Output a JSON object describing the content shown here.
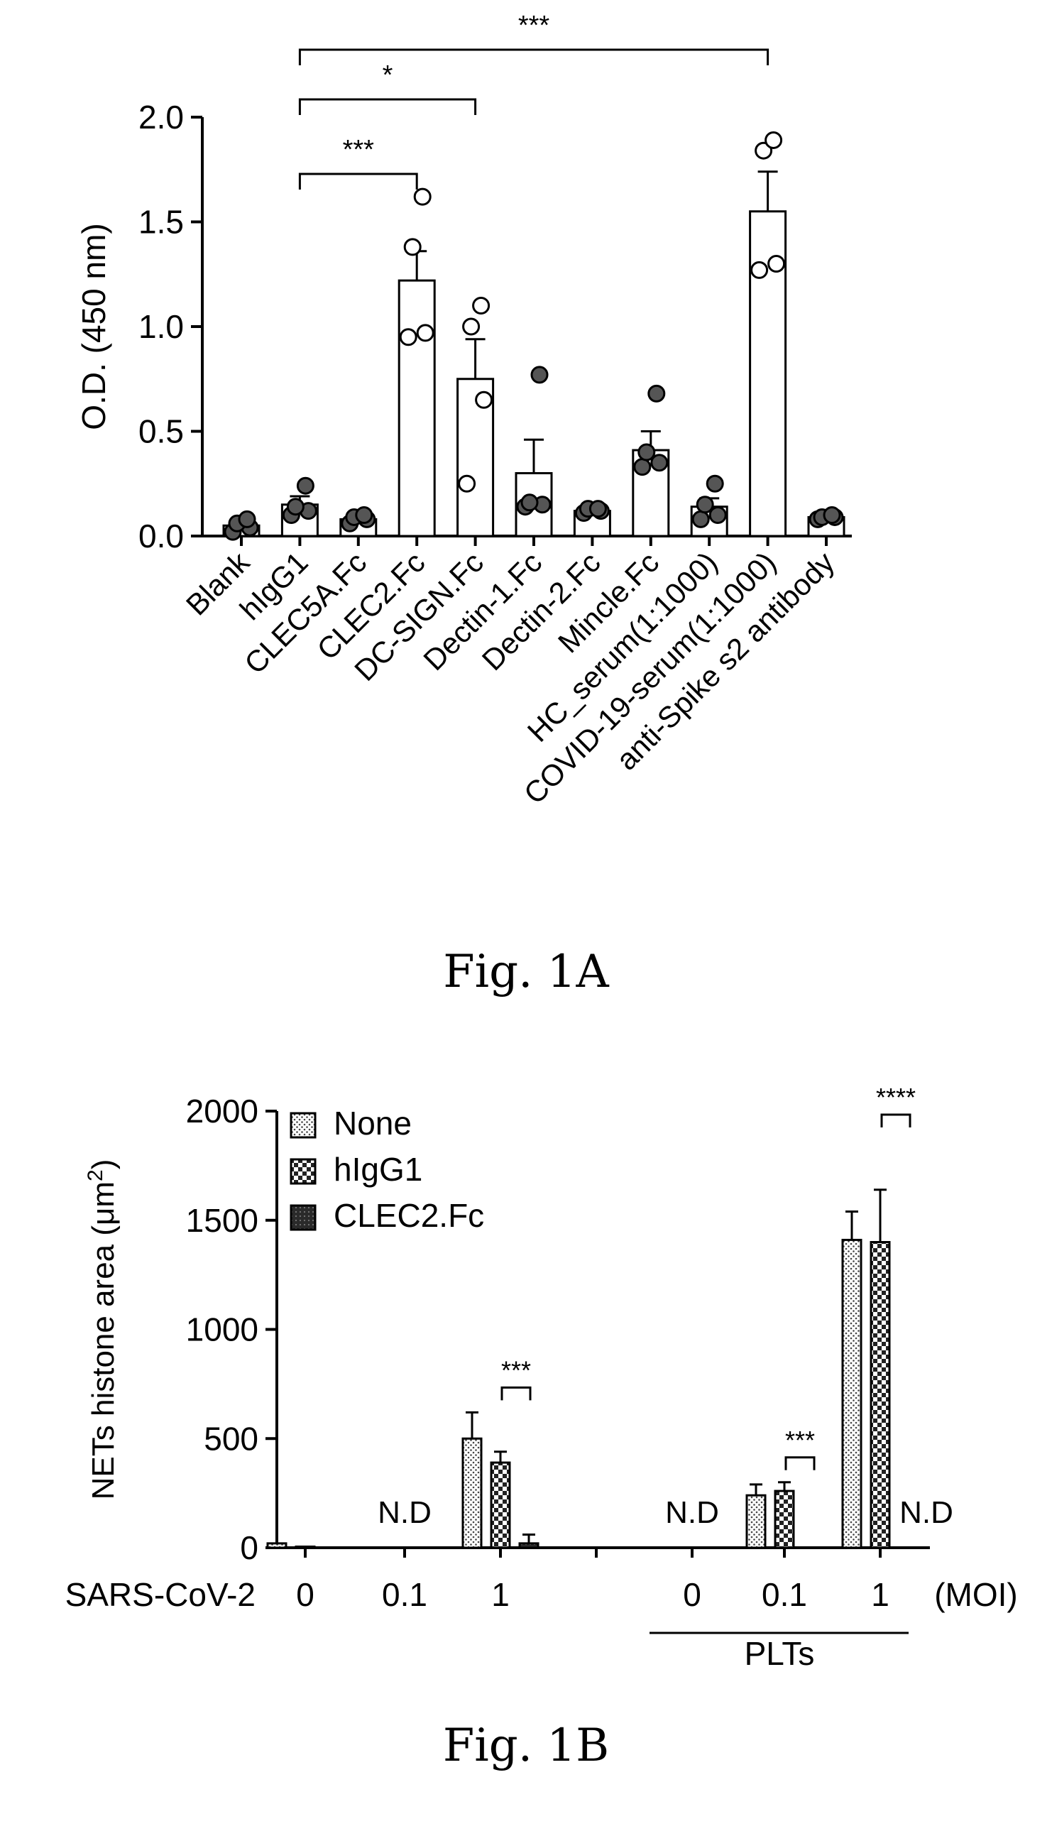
{
  "chart_data": [
    {
      "type": "bar",
      "ylabel": "O.D. (450 nm)",
      "ylim": [
        0,
        2.0
      ],
      "yticks": [
        "0.0",
        "0.5",
        "1.0",
        "1.5",
        "2.0"
      ],
      "categories": [
        "Blank",
        "hIgG1",
        "CLEC5A.Fc",
        "CLEC2.Fc",
        "DC-SIGN.Fc",
        "Dectin-1.Fc",
        "Dectin-2.Fc",
        "Mincle.Fc",
        "HC_serum(1:1000)",
        "COVID-19-serum(1:1000)",
        "anti-Spike s2 antibody"
      ],
      "values": [
        0.05,
        0.15,
        0.08,
        1.22,
        0.75,
        0.3,
        0.12,
        0.41,
        0.14,
        1.55,
        0.09
      ],
      "errors": [
        0.02,
        0.04,
        0.02,
        0.14,
        0.19,
        0.16,
        0.01,
        0.09,
        0.04,
        0.19,
        0.01
      ],
      "points": [
        [
          0.02,
          0.04,
          0.06,
          0.08
        ],
        [
          0.1,
          0.12,
          0.14,
          0.24
        ],
        [
          0.06,
          0.08,
          0.09,
          0.1
        ],
        [
          0.95,
          0.97,
          1.38,
          1.62
        ],
        [
          0.25,
          0.65,
          1.0,
          1.1
        ],
        [
          0.14,
          0.15,
          0.16,
          0.77
        ],
        [
          0.11,
          0.12,
          0.13,
          0.13
        ],
        [
          0.33,
          0.35,
          0.4,
          0.68
        ],
        [
          0.08,
          0.1,
          0.15,
          0.25
        ],
        [
          1.27,
          1.3,
          1.84,
          1.89
        ],
        [
          0.08,
          0.09,
          0.09,
          0.1
        ]
      ],
      "significance": [
        {
          "from": "hIgG1",
          "to": "CLEC2.Fc",
          "label": "***"
        },
        {
          "from": "hIgG1",
          "to": "DC-SIGN.Fc",
          "label": "*"
        },
        {
          "from": "hIgG1",
          "to": "COVID-19-serum(1:1000)",
          "label": "***"
        }
      ],
      "caption": "Fig. 1A"
    },
    {
      "type": "bar",
      "ylabel": "NETs histone area (μm",
      "ylabel_sup": "2",
      "ylabel_close": ")",
      "ylim": [
        0,
        2000
      ],
      "yticks": [
        "0",
        "500",
        "1000",
        "1500",
        "2000"
      ],
      "xrow_label": "SARS-CoV-2",
      "moi_labels": [
        "0",
        "0.1",
        "1",
        "0",
        "0.1",
        "1"
      ],
      "moi_unit": "(MOI)",
      "group_label": "PLTs",
      "nd_label": "N.D",
      "series": [
        {
          "name": "None",
          "values": [
            20,
            null,
            500,
            null,
            240,
            1410
          ],
          "errors": [
            0,
            null,
            120,
            null,
            50,
            130
          ]
        },
        {
          "name": "hIgG1",
          "values": [
            5,
            null,
            390,
            null,
            260,
            1400
          ],
          "errors": [
            0,
            null,
            50,
            null,
            40,
            240
          ]
        },
        {
          "name": "CLEC2.Fc",
          "values": [
            0,
            null,
            20,
            null,
            0,
            0
          ],
          "errors": [
            0,
            null,
            40,
            null,
            0,
            0
          ]
        }
      ],
      "nd_groups": [
        1,
        3,
        5
      ],
      "significance": [
        {
          "group": 2,
          "label": "***"
        },
        {
          "group": 4,
          "label": "***"
        },
        {
          "group": 5,
          "label": "****"
        }
      ],
      "caption": "Fig. 1B"
    }
  ],
  "colors": {
    "ink": "#000000",
    "background": "#ffffff",
    "dark_fill": "#3a3a3a",
    "light_fill": "#f2f2f2"
  }
}
